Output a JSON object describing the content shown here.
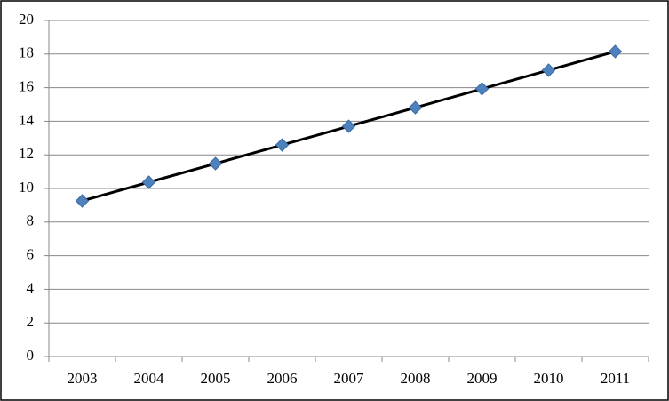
{
  "chart_data": {
    "type": "line",
    "categories": [
      "2003",
      "2004",
      "2005",
      "2006",
      "2007",
      "2008",
      "2009",
      "2010",
      "2011"
    ],
    "values": [
      9.26,
      10.37,
      11.48,
      12.59,
      13.7,
      14.81,
      15.93,
      17.04,
      18.15
    ],
    "color": "#000000",
    "marker_color": "#4f81bd",
    "ylim": [
      0,
      20
    ],
    "yticks": [
      0,
      2,
      4,
      6,
      8,
      10,
      12,
      14,
      16,
      18,
      20
    ],
    "grid": true
  }
}
